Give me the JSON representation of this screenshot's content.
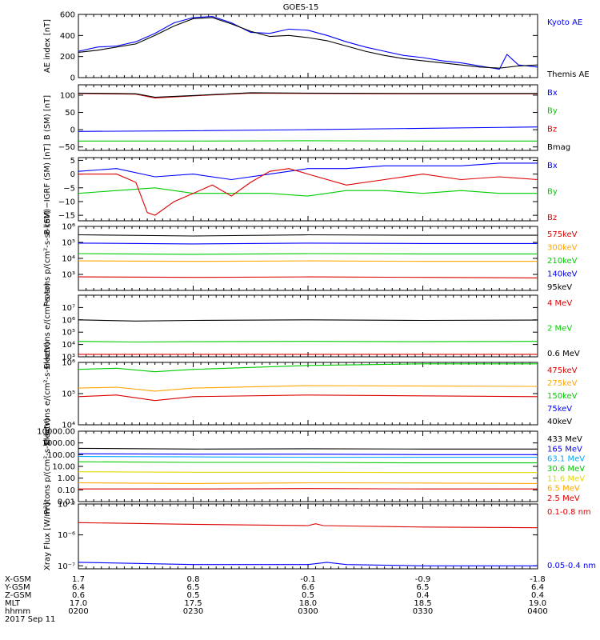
{
  "title": "GOES-15",
  "colors": {
    "black": "#000000",
    "blue": "#0000ff",
    "green": "#00cc00",
    "red": "#dd0000",
    "orange": "#ffa500",
    "yellow": "#e6d800",
    "cyan": "#00aaff"
  },
  "footer": {
    "rows": [
      {
        "label": "X-GSM",
        "values": [
          "1.7",
          "0.8",
          "-0.1",
          "-0.9",
          "-1.8"
        ]
      },
      {
        "label": "Y-GSM",
        "values": [
          "6.4",
          "6.5",
          "6.6",
          "6.5",
          "6.4"
        ]
      },
      {
        "label": "Z-GSM",
        "values": [
          "0.6",
          "0.5",
          "0.5",
          "0.4",
          "0.4"
        ]
      },
      {
        "label": "MLT",
        "values": [
          "17.0",
          "17.5",
          "18.0",
          "18.5",
          "19.0"
        ]
      },
      {
        "label": "hhmm",
        "values": [
          "0200",
          "0230",
          "0300",
          "0330",
          "0400"
        ]
      }
    ],
    "date": "2017 Sep 11"
  },
  "chart_data": [
    {
      "type": "line",
      "id": "ae",
      "ylabel": "AE index [nT]",
      "scale": "linear",
      "ylim": [
        0,
        600
      ],
      "ticks": [
        {
          "v": 0,
          "t": "0"
        },
        {
          "v": 200,
          "t": "200"
        },
        {
          "v": 400,
          "t": "400"
        },
        {
          "v": 600,
          "t": "600"
        }
      ],
      "series": [
        {
          "name": "Kyoto AE",
          "color": "blue",
          "x": [
            0,
            5,
            10,
            15,
            20,
            25,
            30,
            35,
            40,
            45,
            50,
            55,
            60,
            65,
            70,
            75,
            80,
            85,
            90,
            95,
            100,
            105,
            110,
            112,
            115,
            120
          ],
          "y": [
            250,
            290,
            300,
            340,
            420,
            520,
            570,
            580,
            520,
            430,
            420,
            460,
            450,
            400,
            340,
            290,
            250,
            210,
            190,
            160,
            140,
            110,
            80,
            220,
            120,
            100
          ]
        },
        {
          "name": "Themis AE",
          "color": "black",
          "x": [
            0,
            5,
            10,
            15,
            20,
            25,
            30,
            35,
            40,
            45,
            50,
            55,
            60,
            65,
            70,
            75,
            80,
            85,
            90,
            95,
            100,
            105,
            110,
            115,
            120
          ],
          "y": [
            240,
            260,
            290,
            320,
            400,
            490,
            560,
            570,
            510,
            440,
            390,
            400,
            380,
            350,
            300,
            250,
            210,
            180,
            160,
            140,
            120,
            100,
            90,
            110,
            120
          ]
        }
      ]
    },
    {
      "type": "line",
      "id": "b_sm",
      "ylabel": "B (SM) [nT]",
      "scale": "linear",
      "ylim": [
        -60,
        130
      ],
      "ticks": [
        {
          "v": -50,
          "t": "−50"
        },
        {
          "v": 0,
          "t": "0"
        },
        {
          "v": 50,
          "t": "50"
        },
        {
          "v": 100,
          "t": "100"
        }
      ],
      "series": [
        {
          "name": "Bx",
          "color": "blue",
          "x": [
            0,
            30,
            60,
            90,
            120
          ],
          "y": [
            -5,
            -3,
            0,
            4,
            8
          ]
        },
        {
          "name": "By",
          "color": "green",
          "x": [
            0,
            30,
            60,
            90,
            120
          ],
          "y": [
            -33,
            -33,
            -32,
            -33,
            -33
          ]
        },
        {
          "name": "Bz",
          "color": "red",
          "x": [
            0,
            15,
            20,
            30,
            45,
            60,
            90,
            120
          ],
          "y": [
            105,
            103,
            92,
            98,
            106,
            105,
            104,
            104
          ]
        },
        {
          "name": "Bmag",
          "color": "black",
          "x": [
            0,
            15,
            20,
            30,
            45,
            60,
            90,
            120
          ],
          "y": [
            106,
            104,
            94,
            99,
            107,
            106,
            105,
            105
          ]
        }
      ]
    },
    {
      "type": "line",
      "id": "b_igrf",
      "ylabel": "B (SM)−IGRF (SM) [nT]",
      "scale": "linear",
      "ylim": [
        -17,
        6
      ],
      "ticks": [
        {
          "v": -15,
          "t": "−15"
        },
        {
          "v": -10,
          "t": "−10"
        },
        {
          "v": -5,
          "t": "−5"
        },
        {
          "v": 0,
          "t": "0"
        },
        {
          "v": 5,
          "t": "5"
        }
      ],
      "series": [
        {
          "name": "Bx",
          "color": "blue",
          "x": [
            0,
            10,
            20,
            30,
            40,
            50,
            60,
            70,
            80,
            90,
            100,
            110,
            120
          ],
          "y": [
            1,
            2,
            -1,
            0,
            -2,
            0,
            2,
            2,
            3,
            3,
            3,
            4,
            4
          ]
        },
        {
          "name": "By",
          "color": "green",
          "x": [
            0,
            10,
            20,
            30,
            40,
            50,
            60,
            70,
            80,
            90,
            100,
            110,
            120
          ],
          "y": [
            -7,
            -6,
            -5,
            -7,
            -7,
            -7,
            -8,
            -6,
            -6,
            -7,
            -6,
            -7,
            -7
          ]
        },
        {
          "name": "Bz",
          "color": "red",
          "x": [
            0,
            10,
            15,
            18,
            20,
            25,
            30,
            35,
            40,
            45,
            50,
            55,
            60,
            70,
            80,
            90,
            100,
            110,
            120
          ],
          "y": [
            0,
            0,
            -3,
            -14,
            -15,
            -10,
            -7,
            -4,
            -8,
            -3,
            1,
            2,
            0,
            -4,
            -2,
            0,
            -2,
            -1,
            -2
          ]
        }
      ]
    },
    {
      "type": "line",
      "id": "protons",
      "ylabel": "Protons p/(cm²-s-sr-keV)",
      "scale": "log",
      "ylim": [
        100,
        1000000
      ],
      "ticks": [
        {
          "v": 1000,
          "t": "10³"
        },
        {
          "v": 10000,
          "t": "10⁴"
        },
        {
          "v": 100000,
          "t": "10⁵"
        },
        {
          "v": 1000000,
          "t": "10⁶"
        }
      ],
      "series": [
        {
          "name": "575keV",
          "color": "red",
          "x": [
            0,
            30,
            60,
            90,
            120
          ],
          "y": [
            700,
            650,
            700,
            650,
            600
          ]
        },
        {
          "name": "300keV",
          "color": "orange",
          "x": [
            0,
            30,
            60,
            90,
            120
          ],
          "y": [
            7000,
            6500,
            7000,
            6500,
            6500
          ]
        },
        {
          "name": "210keV",
          "color": "green",
          "x": [
            0,
            30,
            60,
            90,
            120
          ],
          "y": [
            20000,
            18000,
            20000,
            19000,
            19000
          ]
        },
        {
          "name": "140keV",
          "color": "blue",
          "x": [
            0,
            30,
            60,
            90,
            120
          ],
          "y": [
            90000,
            80000,
            90000,
            85000,
            85000
          ]
        },
        {
          "name": "95keV",
          "color": "black",
          "x": [
            0,
            30,
            60,
            90,
            120
          ],
          "y": [
            300000,
            250000,
            300000,
            280000,
            280000
          ]
        }
      ]
    },
    {
      "type": "line",
      "id": "electrons_hi",
      "ylabel": "Electrons e/(cm²-s-sr)",
      "scale": "log",
      "ylim": [
        1000,
        100000000
      ],
      "ticks": [
        {
          "v": 1000,
          "t": "10³"
        },
        {
          "v": 10000,
          "t": "10⁴"
        },
        {
          "v": 100000,
          "t": "10⁵"
        },
        {
          "v": 1000000,
          "t": "10⁶"
        },
        {
          "v": 10000000,
          "t": "10⁷"
        }
      ],
      "series": [
        {
          "name": "4 MeV",
          "color": "red",
          "x": [
            0,
            30,
            60,
            90,
            120
          ],
          "y": [
            1600,
            1600,
            1600,
            1600,
            1600
          ]
        },
        {
          "name": "2 MeV",
          "color": "green",
          "x": [
            0,
            15,
            30,
            60,
            90,
            120
          ],
          "y": [
            18000,
            16000,
            17000,
            18000,
            17000,
            18000
          ]
        },
        {
          "name": "0.6 MeV",
          "color": "black",
          "x": [
            0,
            15,
            30,
            60,
            90,
            120
          ],
          "y": [
            1000000,
            800000,
            900000,
            1000000,
            900000,
            950000
          ]
        }
      ]
    },
    {
      "type": "line",
      "id": "electrons_lo",
      "ylabel": "Electrons e/(cm²-s-sr-keV)",
      "scale": "log",
      "ylim": [
        10000,
        1000000
      ],
      "ticks": [
        {
          "v": 10000,
          "t": "10⁴"
        },
        {
          "v": 100000,
          "t": "10⁵"
        },
        {
          "v": 1000000,
          "t": "10⁶"
        }
      ],
      "series": [
        {
          "name": "475keV",
          "color": "red",
          "x": [
            0,
            10,
            20,
            30,
            60,
            120
          ],
          "y": [
            80000,
            90000,
            60000,
            80000,
            90000,
            80000
          ]
        },
        {
          "name": "275keV",
          "color": "orange",
          "x": [
            0,
            10,
            20,
            30,
            60,
            120
          ],
          "y": [
            150000,
            160000,
            120000,
            150000,
            180000,
            170000
          ]
        },
        {
          "name": "150keV",
          "color": "green",
          "x": [
            0,
            10,
            20,
            30,
            60,
            90,
            120
          ],
          "y": [
            600000,
            650000,
            500000,
            600000,
            800000,
            900000,
            900000
          ]
        },
        {
          "name": "75keV",
          "color": "blue",
          "x": [],
          "y": []
        },
        {
          "name": "40keV",
          "color": "black",
          "x": [],
          "y": []
        }
      ]
    },
    {
      "type": "line",
      "id": "protons_hi",
      "ylabel": "Protons p/(cm²-s-sr-keV)",
      "scale": "log",
      "ylim": [
        0.01,
        10000
      ],
      "ticks": [
        {
          "v": 0.01,
          "t": "0.01"
        },
        {
          "v": 0.1,
          "t": "0.10"
        },
        {
          "v": 1,
          "t": "1.00"
        },
        {
          "v": 10,
          "t": "10.00"
        },
        {
          "v": 100,
          "t": "100.00"
        },
        {
          "v": 1000,
          "t": "1000.00"
        },
        {
          "v": 10000,
          "t": "10000.00"
        }
      ],
      "series": [
        {
          "name": "433 MeV",
          "color": "black",
          "x": [
            0,
            30,
            60,
            90,
            120
          ],
          "y": [
            350,
            300,
            320,
            300,
            300
          ]
        },
        {
          "name": "165 MeV",
          "color": "blue",
          "x": [
            0,
            30,
            60,
            90,
            120
          ],
          "y": [
            120,
            110,
            110,
            100,
            100
          ]
        },
        {
          "name": "63.1 MeV",
          "color": "cyan",
          "x": [
            0,
            30,
            60,
            90,
            120
          ],
          "y": [
            70,
            65,
            60,
            60,
            60
          ]
        },
        {
          "name": "30.6 MeV",
          "color": "green",
          "x": [
            0,
            30,
            60,
            90,
            120
          ],
          "y": [
            25,
            22,
            22,
            20,
            20
          ]
        },
        {
          "name": "11.6 MeV",
          "color": "yellow",
          "x": [
            0,
            30,
            60,
            90,
            120
          ],
          "y": [
            3.5,
            3.2,
            3.2,
            3.0,
            3.0
          ]
        },
        {
          "name": "6.5 MeV",
          "color": "orange",
          "x": [
            0,
            30,
            60,
            90,
            120
          ],
          "y": [
            0.4,
            0.35,
            0.4,
            0.38,
            0.35
          ]
        },
        {
          "name": "2.5 MeV",
          "color": "red",
          "x": [
            0,
            30,
            60,
            90,
            120
          ],
          "y": [
            0.12,
            0.12,
            0.13,
            0.12,
            0.12
          ]
        }
      ]
    },
    {
      "type": "line",
      "id": "xray",
      "ylabel": "Xray Flux [W/m²]",
      "scale": "log",
      "ylim": [
        8e-08,
        1e-05
      ],
      "ticks": [
        {
          "v": 1e-07,
          "t": "10⁻⁷"
        },
        {
          "v": 1e-06,
          "t": "10⁻⁶"
        },
        {
          "v": 1e-05,
          "t": "10⁻⁵"
        }
      ],
      "series": [
        {
          "name": "0.1-0.8 nm",
          "color": "red",
          "x": [
            0,
            30,
            60,
            62,
            64,
            90,
            120
          ],
          "y": [
            2.5e-06,
            2.2e-06,
            2e-06,
            2.3e-06,
            2e-06,
            1.8e-06,
            1.7e-06
          ]
        },
        {
          "name": "0.05-0.4 nm",
          "color": "blue",
          "x": [
            0,
            30,
            60,
            65,
            70,
            90,
            120
          ],
          "y": [
            1.3e-07,
            1.1e-07,
            1.1e-07,
            1.3e-07,
            1.1e-07,
            1e-07,
            1e-07
          ]
        }
      ]
    }
  ]
}
